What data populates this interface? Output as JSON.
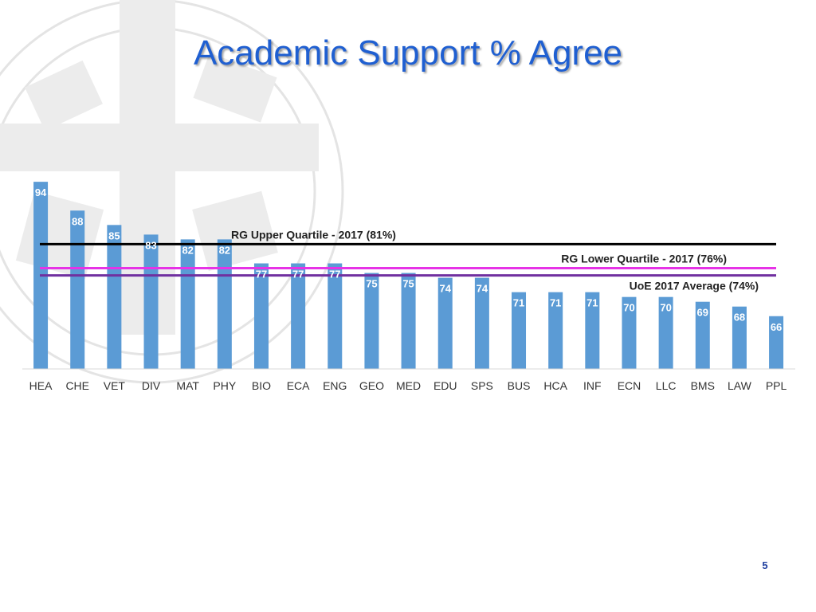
{
  "page": {
    "title": "Academic Support % Agree",
    "page_number": "5"
  },
  "colors": {
    "bar": "#5b9bd5",
    "title": "#1f5fd1",
    "upper_quartile_line": "#000000",
    "lower_quartile_line": "#e633e6",
    "average_line": "#7030a0"
  },
  "chart_data": {
    "type": "bar",
    "title": "Academic Support % Agree",
    "xlabel": "",
    "ylabel": "",
    "categories": [
      "HEA",
      "CHE",
      "VET",
      "DIV",
      "MAT",
      "PHY",
      "BIO",
      "ECA",
      "ENG",
      "GEO",
      "MED",
      "EDU",
      "SPS",
      "BUS",
      "HCA",
      "INF",
      "ECN",
      "LLC",
      "BMS",
      "LAW",
      "PPL"
    ],
    "values": [
      94,
      88,
      85,
      83,
      82,
      82,
      77,
      77,
      77,
      75,
      75,
      74,
      74,
      71,
      71,
      71,
      70,
      70,
      69,
      68,
      66
    ],
    "ylim": [
      55,
      100
    ],
    "grid": false,
    "reference_lines": [
      {
        "label": "RG Upper Quartile - 2017 (81%)",
        "value": 81
      },
      {
        "label": "RG Lower Quartile - 2017 (76%)",
        "value": 76
      },
      {
        "label": "UoE 2017 Average (74%)",
        "value": 74.5
      }
    ]
  }
}
